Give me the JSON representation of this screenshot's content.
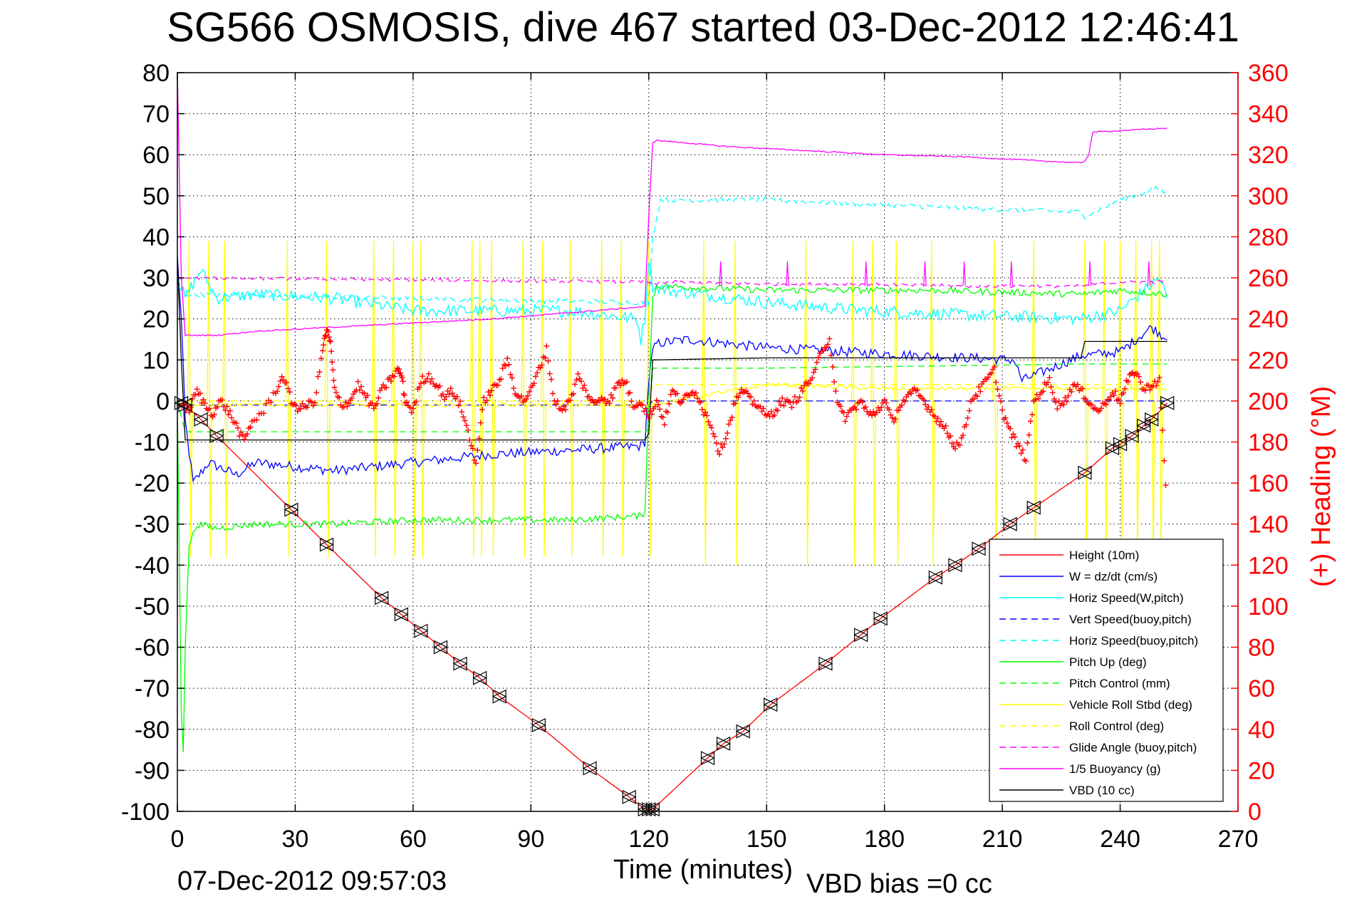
{
  "chart_data": {
    "type": "line",
    "title": "SG566 OSMOSIS, dive 467 started 03-Dec-2012 12:46:41",
    "xlabel": "Time (minutes)",
    "ylabel_right": "(+) Heading (°M)",
    "xlim": [
      0,
      270
    ],
    "ylim_left": [
      -100,
      80
    ],
    "ylim_right": [
      0,
      360
    ],
    "x_ticks": [
      0,
      30,
      60,
      90,
      120,
      150,
      180,
      210,
      240,
      270
    ],
    "x_tick_labels": [
      "0",
      "30",
      "60",
      "90",
      "120",
      "150",
      "180",
      "210",
      "240",
      "270"
    ],
    "y_ticks_left": [
      80,
      70,
      60,
      50,
      40,
      30,
      20,
      10,
      0,
      -10,
      -20,
      -30,
      -40,
      -50,
      -60,
      -70,
      -80,
      -90,
      -100
    ],
    "y_tick_labels_left": [
      "80",
      "70",
      "60",
      "50",
      "40",
      "30",
      "20",
      "10",
      "0",
      "-10",
      "-20",
      "-30",
      "-40",
      "-50",
      "-60",
      "-70",
      "-80",
      "-90",
      "-100"
    ],
    "y_ticks_right": [
      360,
      340,
      320,
      300,
      280,
      260,
      240,
      220,
      200,
      180,
      160,
      140,
      120,
      100,
      80,
      60,
      40,
      20,
      0
    ],
    "y_tick_labels_right": [
      "360",
      "340",
      "320",
      "300",
      "280",
      "260",
      "240",
      "220",
      "200",
      "180",
      "160",
      "140",
      "120",
      "100",
      "80",
      "60",
      "40",
      "20",
      "0"
    ],
    "grid": true,
    "legend_position": "bottom-right",
    "series": [
      {
        "name": "Height (10m)",
        "color": "#ff0000",
        "dash": "solid",
        "x": [
          0,
          2,
          6,
          10,
          29,
          38,
          52,
          57,
          62,
          67,
          72,
          77,
          82,
          92,
          105,
          115,
          119,
          121,
          135,
          139,
          144,
          151,
          165,
          174,
          179,
          193,
          198,
          204,
          212,
          218,
          231,
          238,
          240,
          243,
          246,
          248,
          252
        ],
        "y": [
          -0.5,
          -1,
          -4.5,
          -8.5,
          -26.5,
          -35,
          -48,
          -52,
          -56,
          -60,
          -64,
          -67.5,
          -72,
          -79,
          -89.5,
          -96.5,
          -99.5,
          -99.5,
          -87,
          -83.5,
          -80.5,
          -74,
          -64,
          -57,
          -53,
          -43,
          -40,
          -36,
          -30,
          -26,
          -17.5,
          -11.5,
          -10.5,
          -8.5,
          -6,
          -4.5,
          -0.5
        ]
      },
      {
        "name": "W = dz/dt (cm/s)",
        "color": "#0000ff",
        "dash": "solid",
        "x": [
          0,
          1,
          2,
          4,
          8,
          15,
          20,
          40,
          60,
          80,
          100,
          118,
          119,
          120,
          121,
          122,
          130,
          150,
          170,
          190,
          213,
          215,
          230,
          240,
          248,
          252
        ],
        "y": [
          35,
          20,
          -5,
          -20,
          -15,
          -18,
          -15,
          -17,
          -15,
          -13,
          -12,
          -11,
          -10,
          5,
          12,
          14,
          15,
          13,
          12,
          11,
          10,
          5,
          11,
          12,
          18,
          15
        ]
      },
      {
        "name": "Horiz Speed(W,pitch)",
        "color": "#00ffff",
        "dash": "solid",
        "x": [
          0,
          2,
          6,
          10,
          20,
          40,
          60,
          80,
          100,
          117,
          118,
          119,
          120,
          121,
          125,
          150,
          175,
          200,
          230,
          240,
          250,
          252
        ],
        "y": [
          30,
          25,
          32,
          25,
          26,
          25,
          22,
          22,
          22,
          20,
          15,
          20,
          35,
          28,
          27,
          24,
          22,
          21,
          20,
          22,
          30,
          25
        ]
      },
      {
        "name": "Vert Speed(buoy,pitch)",
        "color": "#0000ff",
        "dash": "dashed",
        "x": [
          0,
          120,
          121,
          252
        ],
        "y": [
          -1,
          -1,
          0,
          0
        ]
      },
      {
        "name": "Horiz Speed(buoy,pitch)",
        "color": "#00ffff",
        "dash": "dashed",
        "x": [
          0,
          2,
          119,
          120,
          121,
          123,
          150,
          175,
          200,
          230,
          231,
          240,
          250,
          252
        ],
        "y": [
          30,
          26,
          24,
          24,
          40,
          49,
          49,
          48,
          47,
          46,
          45,
          49,
          52,
          50
        ]
      },
      {
        "name": "Pitch Up (deg)",
        "color": "#00ff00",
        "dash": "solid",
        "x": [
          0,
          1,
          1.5,
          2,
          3,
          5,
          10,
          20,
          40,
          60,
          80,
          100,
          118,
          119,
          120,
          121,
          122,
          150,
          190,
          230,
          240,
          252
        ],
        "y": [
          0,
          -75,
          -85,
          -60,
          -35,
          -30,
          -31,
          -30,
          -30,
          -29,
          -29,
          -29,
          -28,
          -27,
          0,
          25,
          28,
          27,
          27,
          26,
          27,
          26
        ]
      },
      {
        "name": "Pitch Control (mm)",
        "color": "#00ff00",
        "dash": "dashed",
        "x": [
          0,
          2,
          119,
          120,
          121,
          150,
          230,
          252
        ],
        "y": [
          0,
          -7.5,
          -7.5,
          -7,
          8,
          8,
          9,
          9
        ]
      },
      {
        "name": "Vehicle Roll Stbd (deg)",
        "color": "#ffff00",
        "dash": "solid",
        "x": [
          0,
          30,
          60,
          90,
          120,
          150,
          180,
          210,
          240,
          252
        ],
        "y": [
          -1,
          -1,
          -1,
          -1,
          -1,
          4,
          3,
          3,
          3,
          3
        ]
      },
      {
        "name": "Roll Control (deg)",
        "color": "#ffff00",
        "dash": "dashed",
        "x": [
          0,
          120,
          121,
          252
        ],
        "y": [
          0,
          0,
          4,
          4
        ]
      },
      {
        "name": "Glide Angle (buoy,pitch)",
        "color": "#ff00ff",
        "dash": "dashed",
        "x": [
          0,
          2,
          119,
          120,
          121,
          123,
          150,
          175,
          200,
          230,
          240,
          252
        ],
        "y": [
          30,
          30,
          29,
          29,
          28,
          29,
          28.5,
          28.5,
          28,
          28,
          29,
          29
        ]
      },
      {
        "name": "1/5 Buoyancy (g)",
        "color": "#ff00ff",
        "dash": "solid",
        "x": [
          0,
          1,
          2,
          10,
          20,
          40,
          60,
          80,
          100,
          119,
          120,
          121,
          122,
          140,
          160,
          180,
          200,
          230,
          231,
          232,
          233,
          252
        ],
        "y": [
          80,
          30,
          16,
          16,
          17,
          18,
          19,
          20,
          21.5,
          23,
          45,
          63,
          63.5,
          62,
          61,
          60,
          59.5,
          58,
          58.5,
          60,
          65.5,
          66.5
        ]
      },
      {
        "name": "VBD (10 cc)",
        "color": "#000000",
        "dash": "solid",
        "x": [
          0,
          1,
          2,
          119,
          120,
          121,
          150,
          230,
          231,
          252
        ],
        "y": [
          35,
          10,
          -9.5,
          -9.5,
          -8,
          10,
          10.5,
          10.5,
          14.5,
          14.5
        ]
      }
    ],
    "heading_points": {
      "name": "(+) Heading (°M)",
      "color": "#ff0000",
      "marker": "+",
      "axis": "right",
      "x": [
        1,
        3,
        5,
        7,
        9,
        11,
        13,
        15,
        17,
        19,
        22,
        25,
        27,
        29,
        31,
        33,
        35,
        37,
        38,
        39,
        40,
        42,
        44,
        46,
        48,
        50,
        52,
        54,
        56,
        57,
        58,
        60,
        62,
        64,
        66,
        68,
        70,
        72,
        74,
        76,
        78,
        80,
        82,
        84,
        86,
        88,
        90,
        92,
        94,
        96,
        98,
        100,
        102,
        104,
        106,
        108,
        110,
        112,
        114,
        116,
        118,
        120,
        122,
        124,
        126,
        128,
        130,
        132,
        134,
        136,
        138,
        140,
        142,
        144,
        146,
        148,
        150,
        152,
        154,
        156,
        158,
        160,
        162,
        164,
        166,
        168,
        170,
        172,
        174,
        176,
        178,
        180,
        182,
        184,
        186,
        188,
        190,
        192,
        194,
        196,
        198,
        200,
        202,
        204,
        206,
        208,
        210,
        212,
        214,
        216,
        218,
        220,
        222,
        224,
        226,
        228,
        230,
        232,
        234,
        236,
        238,
        240,
        242,
        244,
        246,
        248,
        250,
        252
      ],
      "y": [
        198,
        196,
        205,
        198,
        194,
        200,
        195,
        188,
        180,
        190,
        195,
        205,
        212,
        200,
        196,
        198,
        200,
        225,
        235,
        228,
        205,
        198,
        200,
        208,
        202,
        196,
        205,
        210,
        215,
        213,
        200,
        195,
        210,
        212,
        208,
        202,
        205,
        198,
        185,
        170,
        200,
        205,
        210,
        220,
        205,
        200,
        205,
        215,
        225,
        200,
        196,
        200,
        212,
        205,
        198,
        202,
        200,
        208,
        210,
        198,
        200,
        192,
        200,
        190,
        205,
        200,
        202,
        205,
        195,
        188,
        175,
        185,
        200,
        205,
        200,
        198,
        192,
        195,
        200,
        198,
        202,
        208,
        212,
        225,
        230,
        198,
        192,
        196,
        200,
        193,
        195,
        200,
        190,
        198,
        202,
        205,
        200,
        195,
        190,
        185,
        178,
        182,
        200,
        205,
        210,
        215,
        195,
        185,
        178,
        172,
        200,
        205,
        210,
        198,
        200,
        208,
        205,
        200,
        195,
        198,
        205,
        200,
        210,
        215,
        205,
        208,
        210,
        145
      ]
    },
    "markers": {
      "name": "Height samples",
      "marker": "triangle-pair",
      "color": "#000000",
      "x": [
        1,
        2,
        6,
        10,
        29,
        38,
        52,
        57,
        62,
        67,
        72,
        77,
        82,
        92,
        105,
        115,
        119,
        120,
        121,
        135,
        139,
        144,
        151,
        165,
        174,
        179,
        193,
        198,
        204,
        212,
        218,
        231,
        238,
        240,
        243,
        246,
        248,
        252
      ],
      "y": [
        -0.5,
        -1,
        -4.5,
        -8.5,
        -26.5,
        -35,
        -48,
        -52,
        -56,
        -60,
        -64,
        -67.5,
        -72,
        -79,
        -89.5,
        -96.5,
        -99.5,
        -99.5,
        -99.5,
        -87,
        -83.5,
        -80.5,
        -74,
        -64,
        -57,
        -53,
        -43,
        -40,
        -36,
        -30,
        -26,
        -17.5,
        -11.5,
        -10.5,
        -8.5,
        -6,
        -4.5,
        -0.5
      ]
    },
    "yellow_spikes_x": [
      3,
      8,
      12,
      28,
      38,
      50,
      55,
      60,
      62,
      75,
      77,
      80,
      88,
      93,
      100,
      108,
      113,
      120,
      134,
      142,
      160,
      172,
      177,
      183,
      192,
      208,
      218,
      231,
      236,
      240,
      244,
      248,
      250
    ],
    "cyan_bumps_x": [
      138,
      155,
      175,
      190,
      200,
      212,
      232,
      247
    ]
  },
  "footer": {
    "timestamp": "07-Dec-2012 09:57:03",
    "vbd_bias": "VBD bias =0 cc"
  }
}
